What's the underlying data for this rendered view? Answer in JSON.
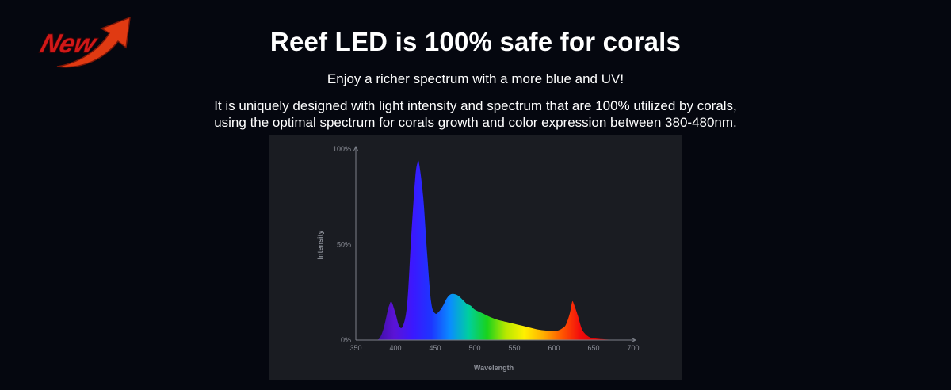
{
  "badge": {
    "text": "New",
    "colors": {
      "text": "#d01818",
      "arrow": "#e03a12"
    }
  },
  "header": {
    "title": "Reef LED is 100% safe for corals",
    "subtitle": "Enjoy a richer spectrum with a more blue and UV!",
    "description_lines": [
      "It is uniquely designed with light intensity and spectrum that are 100% utilized by corals,",
      "using the optimal spectrum for corals growth and color expression between 380-480nm."
    ]
  },
  "chart_data": {
    "type": "area",
    "title": "",
    "xlabel": "Wavelength",
    "ylabel": "Intensity",
    "xlim": [
      350,
      700
    ],
    "ylim": [
      0,
      100
    ],
    "x_ticks": [
      "350",
      "400",
      "450",
      "500",
      "550",
      "600",
      "650",
      "700"
    ],
    "y_ticks": [
      "0%",
      "50%",
      "100%"
    ],
    "grid": false,
    "series": [
      {
        "x": [
          375,
          380,
          385,
          390,
          392,
          395,
          400,
          405,
          410,
          415,
          420,
          425,
          428,
          430,
          435,
          440,
          445,
          450,
          455,
          460,
          465,
          470,
          475,
          480,
          485,
          490,
          495,
          500,
          510,
          520,
          530,
          540,
          550,
          560,
          570,
          580,
          590,
          600,
          605,
          610,
          615,
          620,
          623,
          625,
          630,
          635,
          640,
          645,
          650,
          660,
          670,
          680
        ],
        "y": [
          0,
          1,
          6,
          15,
          18,
          20,
          14,
          7,
          8,
          20,
          55,
          85,
          93,
          92,
          75,
          45,
          20,
          14,
          15,
          18,
          22,
          24,
          24,
          23,
          21,
          19,
          18,
          16,
          14,
          12,
          10.5,
          9.5,
          8.5,
          7.5,
          6.5,
          5.5,
          5,
          5,
          5,
          6,
          8,
          14,
          20,
          19,
          13,
          6,
          3,
          1.5,
          1,
          0.5,
          0.2,
          0
        ]
      }
    ],
    "colors": {
      "panel": "#1a1c22",
      "axis": "#7d808a",
      "gradient": [
        "#3d0fa0",
        "#5b13d6",
        "#3b18ff",
        "#1d36ff",
        "#0a8cff",
        "#00cf9f",
        "#19d21c",
        "#b6e800",
        "#fff000",
        "#ffb000",
        "#ff5800",
        "#f30c0c",
        "#d40000",
        "#7a0000"
      ]
    }
  }
}
